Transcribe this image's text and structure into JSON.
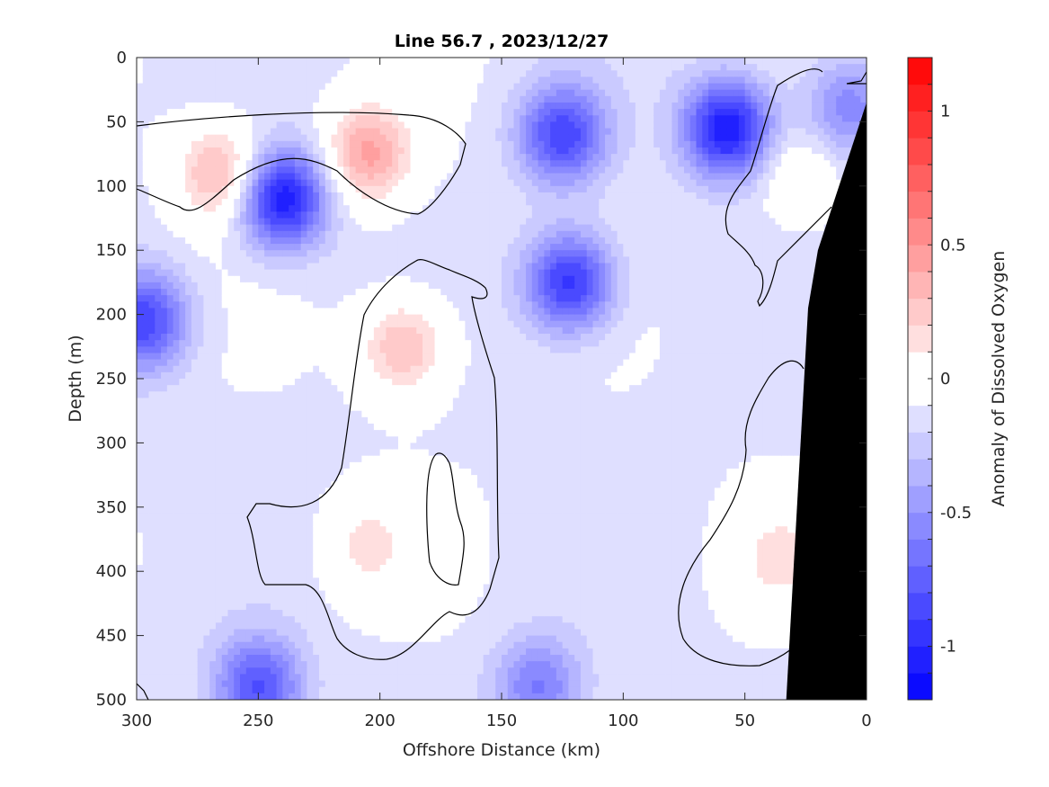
{
  "chart_data": {
    "type": "heatmap",
    "title": "Line 56.7 , 2023/12/27",
    "xlabel": "Offshore Distance (km)",
    "ylabel": "Depth (m)",
    "colorbar_label": "Anomaly of Dissolved Oxygen",
    "x_range": [
      300,
      0
    ],
    "y_range": [
      0,
      500
    ],
    "x_ticks": [
      300,
      250,
      200,
      150,
      100,
      50,
      0
    ],
    "y_ticks": [
      0,
      50,
      100,
      150,
      200,
      250,
      300,
      350,
      400,
      450,
      500
    ],
    "colorbar_range": [
      -1.2,
      1.2
    ],
    "colorbar_ticks": [
      1,
      0.5,
      0,
      -0.5,
      -1
    ],
    "colorbar_ticks_text": [
      "1",
      "0.5",
      "0",
      "-0.5",
      "-1"
    ],
    "level_step": 0.1,
    "colormap": {
      "negative": "#0000ff",
      "zero": "#ffffff",
      "positive": "#ff0000"
    },
    "bathymetry_color": "#000000",
    "zero_contour_color": "#000000",
    "features": [
      {
        "x": 240,
        "y": 110,
        "value": -1.0
      },
      {
        "x": 265,
        "y": 90,
        "value": 0.5
      },
      {
        "x": 205,
        "y": 75,
        "value": 0.55
      },
      {
        "x": 125,
        "y": 60,
        "value": -0.75
      },
      {
        "x": 57,
        "y": 55,
        "value": -1.0
      },
      {
        "x": 122,
        "y": 175,
        "value": -0.85
      },
      {
        "x": 297,
        "y": 205,
        "value": -0.75
      },
      {
        "x": 190,
        "y": 225,
        "value": 0.45
      },
      {
        "x": 205,
        "y": 380,
        "value": 0.25
      },
      {
        "x": 35,
        "y": 390,
        "value": 0.25
      },
      {
        "x": 28,
        "y": 90,
        "value": 0.2
      },
      {
        "x": 250,
        "y": 490,
        "value": -0.7
      },
      {
        "x": 135,
        "y": 490,
        "value": -0.5
      },
      {
        "x": 8,
        "y": 40,
        "value": -0.45
      }
    ],
    "bathymetry": [
      [
        33,
        500
      ],
      [
        24,
        195
      ],
      [
        20,
        150
      ],
      [
        0,
        35
      ],
      [
        0,
        500
      ]
    ]
  }
}
